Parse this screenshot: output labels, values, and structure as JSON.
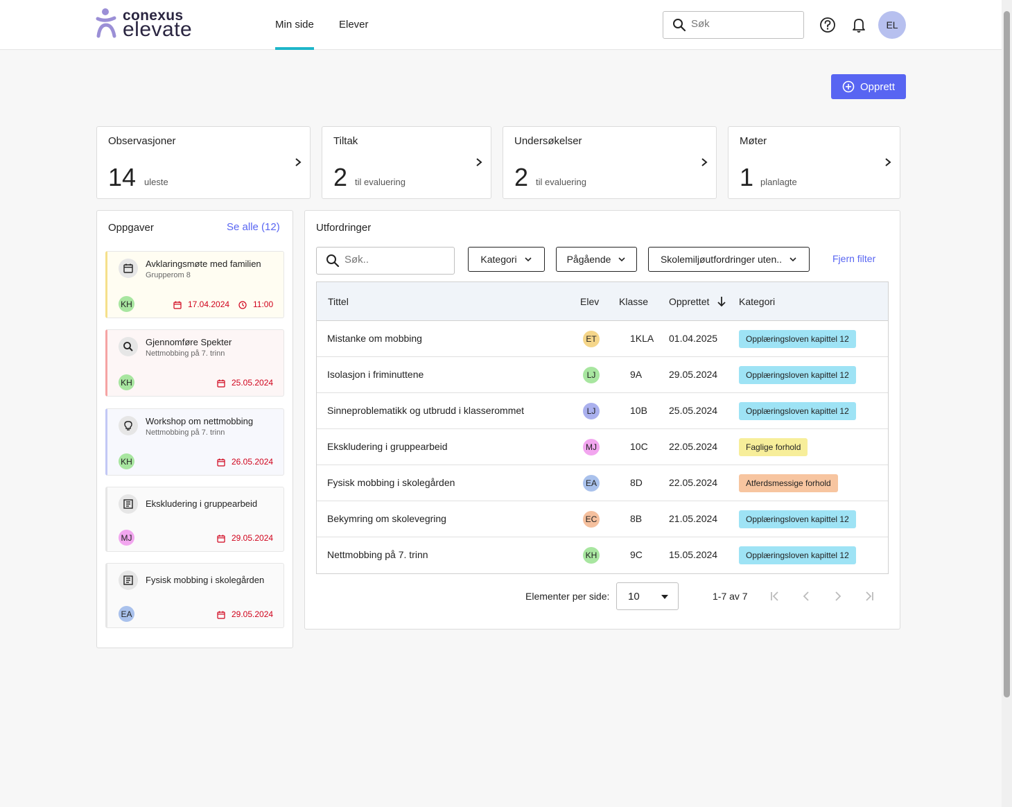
{
  "header": {
    "brand_top": "conexus",
    "brand_bottom": "elevate",
    "nav": [
      {
        "label": "Min side",
        "active": true
      },
      {
        "label": "Elever",
        "active": false
      }
    ],
    "search_placeholder": "Søk",
    "user_initials": "EL"
  },
  "actions": {
    "create_label": "Opprett"
  },
  "summary_cards": [
    {
      "title": "Observasjoner",
      "count": "14",
      "sub": "uleste"
    },
    {
      "title": "Tiltak",
      "count": "2",
      "sub": "til evaluering"
    },
    {
      "title": "Undersøkelser",
      "count": "2",
      "sub": "til evaluering"
    },
    {
      "title": "Møter",
      "count": "1",
      "sub": "planlagte"
    }
  ],
  "tasks_panel": {
    "title": "Oppgaver",
    "see_all": "Se alle (12)",
    "tasks": [
      {
        "title": "Avklaringsmøte med familien",
        "subtitle": "Grupperom 8",
        "icon": "calendar-icon",
        "initials": "KH",
        "date": "17.04.2024",
        "time": "11:00",
        "accent": "#f5e08a",
        "bg": "#fffdf2",
        "avatar_color": "#a8e6a0"
      },
      {
        "title": "Gjennomføre Spekter",
        "subtitle": "Nettmobbing på 7. trinn",
        "icon": "search-icon",
        "initials": "KH",
        "date": "25.05.2024",
        "time": "",
        "accent": "#f5a3a3",
        "bg": "#fdf6f6",
        "avatar_color": "#a8e6a0"
      },
      {
        "title": "Workshop om nettmobbing",
        "subtitle": "Nettmobbing på 7. trinn",
        "icon": "lightbulb-icon",
        "initials": "KH",
        "date": "26.05.2024",
        "time": "",
        "accent": "#c2c8f5",
        "bg": "#f7f8fd",
        "avatar_color": "#a8e6a0"
      },
      {
        "title": "Ekskludering i gruppearbeid",
        "subtitle": "",
        "icon": "form-icon",
        "initials": "MJ",
        "date": "29.05.2024",
        "time": "",
        "accent": "#e6e6e6",
        "bg": "#fafafa",
        "avatar_color": "#f2a6ef"
      },
      {
        "title": "Fysisk mobbing i skolegården",
        "subtitle": "",
        "icon": "form-icon",
        "initials": "EA",
        "date": "29.05.2024",
        "time": "",
        "accent": "#e6e6e6",
        "bg": "#fafafa",
        "avatar_color": "#a9c1ec"
      }
    ]
  },
  "challenges_panel": {
    "title": "Utfordringer",
    "search_placeholder": "Søk..",
    "filters": [
      "Kategori",
      "Pågående",
      "Skolemiljøutfordringer uten.."
    ],
    "clear_filter": "Fjern filter",
    "columns": [
      "Tittel",
      "Elev",
      "Klasse",
      "Opprettet",
      "Kategori"
    ],
    "rows": [
      {
        "title": "Mistanke om mobbing",
        "initials": "ET",
        "avatar_color": "#f5d68a",
        "klasse": "1KLA",
        "date": "01.04.2025",
        "category": "Opplæringsloven kapittel 12",
        "tag_color": "#9ee3f5"
      },
      {
        "title": "Isolasjon i friminuttene",
        "initials": "LJ",
        "avatar_color": "#a8e6a0",
        "klasse": "9A",
        "date": "29.05.2024",
        "category": "Opplæringsloven kapittel 12",
        "tag_color": "#9ee3f5"
      },
      {
        "title": "Sinneproblematikk og utbrudd i klasserommet",
        "initials": "LJ",
        "avatar_color": "#aab0ee",
        "klasse": "10B",
        "date": "25.05.2024",
        "category": "Opplæringsloven kapittel 12",
        "tag_color": "#9ee3f5"
      },
      {
        "title": "Ekskludering i gruppearbeid",
        "initials": "MJ",
        "avatar_color": "#f2a6ef",
        "klasse": "10C",
        "date": "22.05.2024",
        "category": "Faglige forhold",
        "tag_color": "#f7ee9a"
      },
      {
        "title": "Fysisk mobbing i skolegården",
        "initials": "EA",
        "avatar_color": "#a9c1ec",
        "klasse": "8D",
        "date": "22.05.2024",
        "category": "Atferdsmessige forhold",
        "tag_color": "#f7c5a0"
      },
      {
        "title": "Bekymring om skolevegring",
        "initials": "EC",
        "avatar_color": "#f5c09e",
        "klasse": "8B",
        "date": "21.05.2024",
        "category": "Opplæringsloven kapittel 12",
        "tag_color": "#9ee3f5"
      },
      {
        "title": "Nettmobbing på 7. trinn",
        "initials": "KH",
        "avatar_color": "#a8e6a0",
        "klasse": "9C",
        "date": "15.05.2024",
        "category": "Opplæringsloven kapittel 12",
        "tag_color": "#9ee3f5"
      }
    ],
    "pagination": {
      "per_page_label": "Elementer per side:",
      "per_page_value": "10",
      "range": "1-7 av 7"
    }
  }
}
